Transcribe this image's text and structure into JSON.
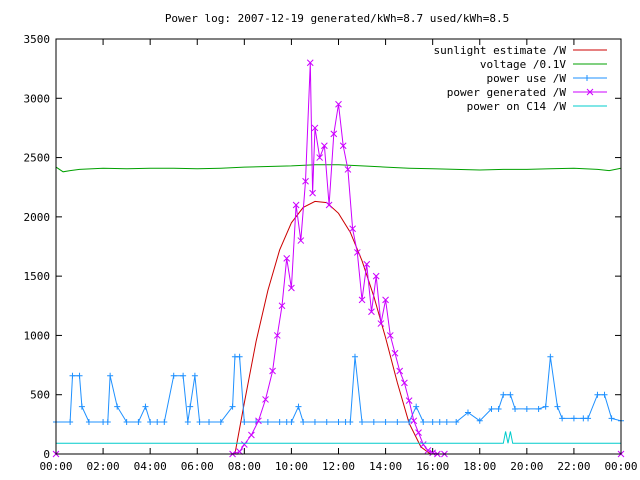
{
  "chart_data": {
    "type": "line",
    "title": "Power log: 2007-12-19 generated/kWh=8.7 used/kWh=8.5",
    "xlabel": "",
    "ylabel": "",
    "xlim": [
      0,
      24
    ],
    "ylim": [
      0,
      3500
    ],
    "grid": false,
    "legend_position": "top-right",
    "x_ticks": [
      {
        "value": 0,
        "label": "00:00"
      },
      {
        "value": 2,
        "label": "02:00"
      },
      {
        "value": 4,
        "label": "04:00"
      },
      {
        "value": 6,
        "label": "06:00"
      },
      {
        "value": 8,
        "label": "08:00"
      },
      {
        "value": 10,
        "label": "10:00"
      },
      {
        "value": 12,
        "label": "12:00"
      },
      {
        "value": 14,
        "label": "14:00"
      },
      {
        "value": 16,
        "label": "16:00"
      },
      {
        "value": 18,
        "label": "18:00"
      },
      {
        "value": 20,
        "label": "20:00"
      },
      {
        "value": 22,
        "label": "22:00"
      },
      {
        "value": 24,
        "label": "00:00"
      }
    ],
    "y_ticks": [
      0,
      500,
      1000,
      1500,
      2000,
      2500,
      3000,
      3500
    ],
    "series": [
      {
        "name": "sunlight estimate /W",
        "color": "#cc0000",
        "marker": "none",
        "x": [
          7.6,
          8.0,
          8.5,
          9.0,
          9.5,
          10.0,
          10.5,
          11.0,
          11.5,
          12.0,
          12.5,
          13.0,
          13.5,
          14.0,
          14.5,
          15.0,
          15.5,
          15.9
        ],
        "y": [
          0,
          430,
          950,
          1380,
          1720,
          1950,
          2080,
          2130,
          2120,
          2030,
          1870,
          1630,
          1330,
          980,
          600,
          260,
          60,
          0
        ]
      },
      {
        "name": "voltage /0.1V",
        "color": "#00a000",
        "marker": "none",
        "x": [
          0,
          0.3,
          0.6,
          1,
          2,
          3,
          4,
          5,
          6,
          7,
          8,
          9,
          10,
          11,
          12,
          13,
          14,
          15,
          16,
          17,
          18,
          19,
          20,
          21,
          22,
          23,
          23.5,
          24
        ],
        "y": [
          2420,
          2380,
          2390,
          2400,
          2410,
          2405,
          2410,
          2410,
          2405,
          2410,
          2420,
          2425,
          2430,
          2440,
          2440,
          2430,
          2420,
          2410,
          2405,
          2400,
          2395,
          2400,
          2400,
          2405,
          2410,
          2400,
          2390,
          2410
        ]
      },
      {
        "name": "power use /W",
        "color": "#1e90ff",
        "marker": "plus",
        "x": [
          0,
          0.6,
          0.7,
          1.0,
          1.1,
          1.4,
          2.0,
          2.2,
          2.3,
          2.6,
          3.0,
          3.5,
          3.8,
          4.0,
          4.3,
          4.6,
          5.0,
          5.4,
          5.6,
          5.7,
          5.9,
          6.1,
          6.5,
          7.0,
          7.5,
          7.6,
          7.8,
          8.0,
          8.5,
          9.0,
          9.5,
          9.8,
          10.0,
          10.3,
          10.5,
          11.0,
          11.5,
          12.0,
          12.3,
          12.5,
          12.7,
          13.0,
          13.5,
          14.0,
          14.5,
          15.0,
          15.3,
          15.6,
          16.0,
          16.3,
          16.6,
          17.0,
          17.5,
          18.0,
          18.5,
          18.8,
          19.0,
          19.3,
          19.5,
          20.0,
          20.5,
          20.8,
          21.0,
          21.3,
          21.5,
          22.0,
          22.4,
          22.6,
          23.0,
          23.3,
          23.6,
          24.0
        ],
        "y": [
          270,
          270,
          660,
          660,
          400,
          270,
          270,
          270,
          660,
          400,
          270,
          270,
          400,
          270,
          270,
          270,
          660,
          660,
          270,
          400,
          660,
          270,
          270,
          270,
          400,
          820,
          820,
          270,
          270,
          270,
          270,
          270,
          270,
          400,
          270,
          270,
          270,
          270,
          270,
          270,
          820,
          270,
          270,
          270,
          270,
          270,
          400,
          270,
          270,
          270,
          270,
          270,
          350,
          280,
          380,
          380,
          500,
          500,
          380,
          380,
          380,
          400,
          820,
          400,
          300,
          300,
          300,
          300,
          500,
          500,
          300,
          280
        ]
      },
      {
        "name": "power generated /W",
        "color": "#cc00ff",
        "marker": "cross",
        "x": [
          0,
          7.5,
          7.8,
          8.0,
          8.3,
          8.6,
          8.9,
          9.2,
          9.4,
          9.6,
          9.8,
          10.0,
          10.2,
          10.4,
          10.6,
          10.8,
          10.9,
          11.0,
          11.2,
          11.4,
          11.6,
          11.8,
          12.0,
          12.2,
          12.4,
          12.6,
          12.8,
          13.0,
          13.2,
          13.4,
          13.6,
          13.8,
          14.0,
          14.2,
          14.4,
          14.6,
          14.8,
          15.0,
          15.2,
          15.4,
          15.6,
          15.8,
          16.0,
          16.2,
          16.5,
          24.0
        ],
        "y": [
          0,
          0,
          20,
          80,
          160,
          280,
          460,
          700,
          1000,
          1250,
          1650,
          1400,
          2100,
          1800,
          2300,
          3300,
          2200,
          2750,
          2500,
          2600,
          2100,
          2700,
          2950,
          2600,
          2400,
          1900,
          1700,
          1300,
          1600,
          1200,
          1500,
          1100,
          1300,
          1000,
          850,
          700,
          600,
          450,
          280,
          180,
          80,
          30,
          10,
          0,
          0,
          0
        ]
      },
      {
        "name": "power on C14 /W",
        "color": "#00cccc",
        "marker": "none",
        "x": [
          0,
          19.0,
          19.1,
          19.2,
          19.3,
          19.4,
          24.0
        ],
        "y": [
          90,
          90,
          190,
          90,
          190,
          90,
          90
        ]
      }
    ]
  }
}
